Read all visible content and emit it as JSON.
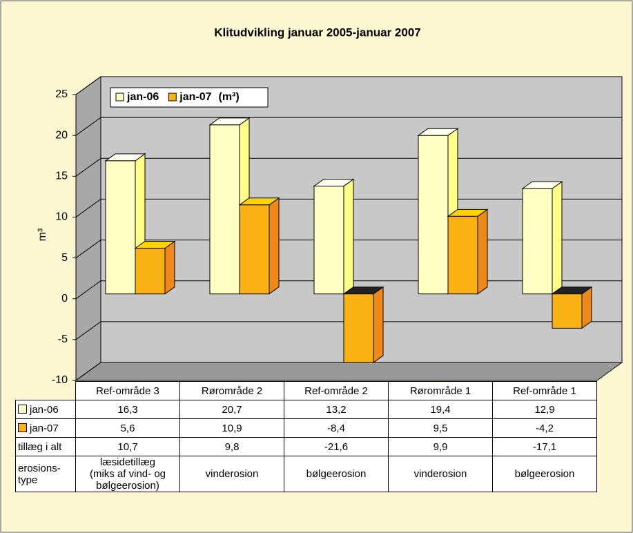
{
  "chart_data": {
    "type": "bar3d",
    "title": "Klitudvikling januar 2005-januar 2007",
    "ylabel": "m³",
    "legend_unit": "(m³)",
    "categories": [
      "Ref-område 3",
      "Rørområde 2",
      "Ref-område 2",
      "Rørområde 1",
      "Ref-område 1"
    ],
    "series": [
      {
        "name": "jan-06",
        "color": "#ffffc4",
        "side_color": "#ffff8a",
        "top_color": "#fffff0",
        "values": [
          16.3,
          20.7,
          13.2,
          19.4,
          12.9
        ],
        "value_labels": [
          "16,3",
          "20,7",
          "13,2",
          "19,4",
          "12,9"
        ]
      },
      {
        "name": "jan-07",
        "color": "#f9b114",
        "side_color": "#ee8a1c",
        "top_color": "#ffd200",
        "values": [
          5.6,
          10.9,
          -8.4,
          9.5,
          -4.2
        ],
        "value_labels": [
          "5,6",
          "10,9",
          "-8,4",
          "9,5",
          "-4,2"
        ]
      }
    ],
    "table_rows": [
      {
        "label": "tillæg i alt",
        "cells": [
          "10,7",
          "9,8",
          "-21,6",
          "9,9",
          "-17,1"
        ]
      },
      {
        "label": "erosions-\ntype",
        "cells": [
          "læsidetillæg\n(miks af vind- og\nbølgeerosion)",
          "vinderosion",
          "bølgeerosion",
          "vinderosion",
          "bølgeerosion"
        ]
      }
    ],
    "ylim": [
      -10,
      25
    ],
    "yticks": [
      -10,
      -5,
      0,
      5,
      10,
      15,
      20,
      25
    ],
    "grid": true
  }
}
